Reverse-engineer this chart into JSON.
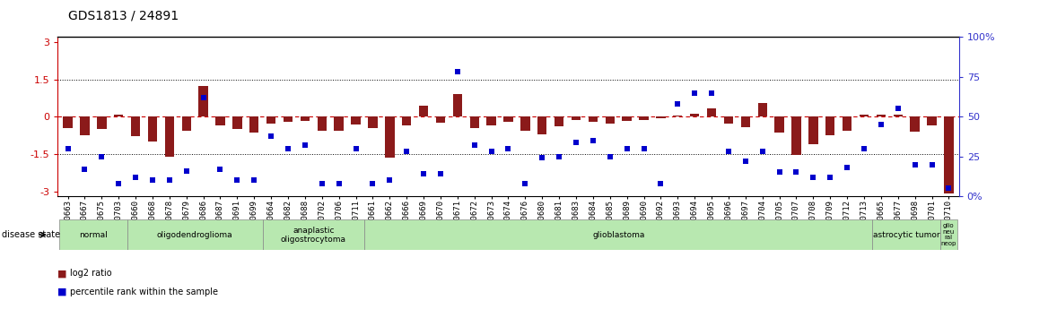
{
  "title": "GDS1813 / 24891",
  "samples": [
    "GSM40663",
    "GSM40667",
    "GSM40675",
    "GSM40703",
    "GSM40660",
    "GSM40668",
    "GSM40678",
    "GSM40679",
    "GSM40686",
    "GSM40687",
    "GSM40691",
    "GSM40699",
    "GSM40664",
    "GSM40682",
    "GSM40688",
    "GSM40702",
    "GSM40706",
    "GSM40711",
    "GSM40661",
    "GSM40662",
    "GSM40666",
    "GSM40669",
    "GSM40670",
    "GSM40671",
    "GSM40672",
    "GSM40673",
    "GSM40674",
    "GSM40676",
    "GSM40680",
    "GSM40681",
    "GSM40683",
    "GSM40684",
    "GSM40685",
    "GSM40689",
    "GSM40690",
    "GSM40692",
    "GSM40693",
    "GSM40694",
    "GSM40695",
    "GSM40696",
    "GSM40697",
    "GSM40704",
    "GSM40705",
    "GSM40707",
    "GSM40708",
    "GSM40709",
    "GSM40712",
    "GSM40713",
    "GSM40665",
    "GSM40677",
    "GSM40698",
    "GSM40701",
    "GSM40710"
  ],
  "log2_ratio": [
    -0.45,
    -0.75,
    -0.5,
    0.08,
    -0.8,
    -1.0,
    -1.6,
    -0.55,
    1.25,
    -0.35,
    -0.5,
    -0.65,
    -0.28,
    -0.22,
    -0.18,
    -0.55,
    -0.55,
    -0.3,
    -0.45,
    -1.65,
    -0.35,
    0.45,
    -0.25,
    0.9,
    -0.45,
    -0.35,
    -0.22,
    -0.55,
    -0.7,
    -0.38,
    -0.15,
    -0.22,
    -0.28,
    -0.18,
    -0.12,
    -0.08,
    0.05,
    0.12,
    0.35,
    -0.28,
    -0.42,
    0.55,
    -0.65,
    -1.55,
    -1.1,
    -0.75,
    -0.55,
    0.08,
    0.08,
    0.08,
    -0.6,
    -0.35,
    -3.1
  ],
  "percentile": [
    30,
    17,
    25,
    8,
    12,
    10,
    10,
    16,
    62,
    17,
    10,
    10,
    38,
    30,
    32,
    8,
    8,
    30,
    8,
    10,
    28,
    14,
    14,
    78,
    32,
    28,
    30,
    8,
    24,
    25,
    34,
    35,
    25,
    30,
    30,
    8,
    58,
    65,
    65,
    28,
    22,
    28,
    15,
    15,
    12,
    12,
    18,
    30,
    45,
    55,
    20,
    20,
    5
  ],
  "disease_groups": [
    {
      "label": "normal",
      "start": 0,
      "end": 4
    },
    {
      "label": "oligodendroglioma",
      "start": 4,
      "end": 12
    },
    {
      "label": "anaplastic\noligostrocytoma",
      "start": 12,
      "end": 18
    },
    {
      "label": "glioblastoma",
      "start": 18,
      "end": 48
    },
    {
      "label": "astrocytic tumor",
      "start": 48,
      "end": 52
    },
    {
      "label": "glio\nneu\nral\nneop",
      "start": 52,
      "end": 53
    }
  ],
  "ylim": [
    -3.2,
    3.2
  ],
  "y2lim": [
    0,
    100
  ],
  "yticks": [
    -3,
    -1.5,
    0,
    1.5,
    3
  ],
  "y2ticks": [
    0,
    25,
    50,
    75,
    100
  ],
  "bar_color": "#8B1A1A",
  "dot_color": "#0000CC",
  "bg_color": "#ffffff",
  "hline_color": "#CC0000",
  "dot_color_left": "#CC0000",
  "right_axis_color": "#3333CC",
  "disease_bar_color": "#b8e8b0",
  "disease_bar_edge": "#888888",
  "title_fontsize": 10,
  "tick_fontsize": 6.5,
  "label_fontsize": 7
}
